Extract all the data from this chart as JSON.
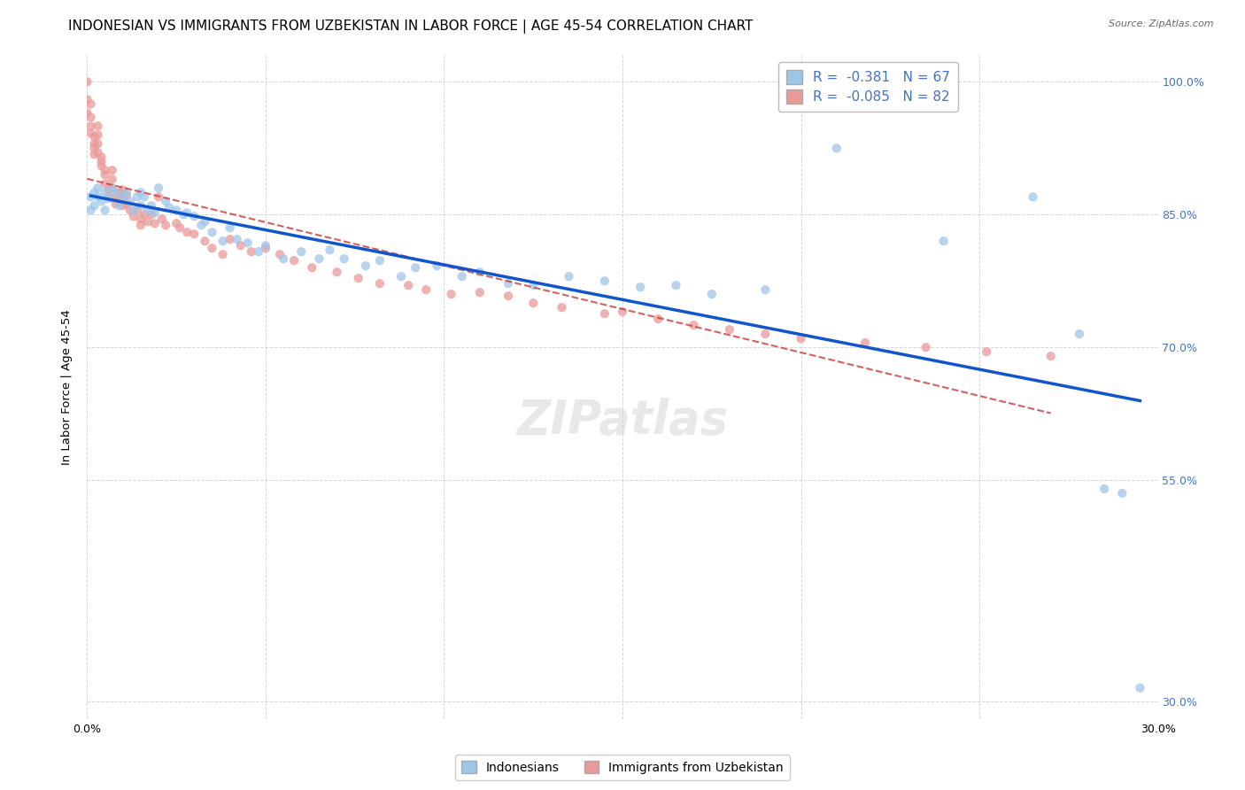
{
  "title": "INDONESIAN VS IMMIGRANTS FROM UZBEKISTAN IN LABOR FORCE | AGE 45-54 CORRELATION CHART",
  "source": "Source: ZipAtlas.com",
  "ylabel": "In Labor Force | Age 45-54",
  "xlim": [
    0.0,
    0.3
  ],
  "ylim": [
    0.28,
    1.03
  ],
  "xticks": [
    0.0,
    0.05,
    0.1,
    0.15,
    0.2,
    0.25,
    0.3
  ],
  "xticklabels": [
    "0.0%",
    "",
    "",
    "",
    "",
    "",
    "30.0%"
  ],
  "yticks": [
    0.3,
    0.55,
    0.7,
    0.85,
    1.0
  ],
  "yticklabels": [
    "30.0%",
    "55.0%",
    "70.0%",
    "85.0%",
    "100.0%"
  ],
  "blue_color": "#9fc5e8",
  "pink_color": "#ea9999",
  "blue_line_color": "#1155cc",
  "pink_line_color": "#cc4444",
  "R_blue": -0.381,
  "N_blue": 67,
  "R_pink": -0.085,
  "N_pink": 82,
  "legend_label_blue": "Indonesians",
  "legend_label_pink": "Immigrants from Uzbekistan",
  "blue_scatter_x": [
    0.001,
    0.001,
    0.002,
    0.002,
    0.003,
    0.003,
    0.004,
    0.005,
    0.005,
    0.006,
    0.007,
    0.008,
    0.009,
    0.01,
    0.011,
    0.012,
    0.013,
    0.014,
    0.015,
    0.015,
    0.016,
    0.017,
    0.018,
    0.019,
    0.02,
    0.022,
    0.023,
    0.025,
    0.027,
    0.028,
    0.03,
    0.032,
    0.033,
    0.035,
    0.038,
    0.04,
    0.042,
    0.045,
    0.048,
    0.05,
    0.055,
    0.06,
    0.065,
    0.068,
    0.072,
    0.078,
    0.082,
    0.088,
    0.092,
    0.098,
    0.105,
    0.11,
    0.118,
    0.125,
    0.135,
    0.145,
    0.155,
    0.165,
    0.175,
    0.19,
    0.21,
    0.24,
    0.265,
    0.278,
    0.285,
    0.29,
    0.295
  ],
  "blue_scatter_y": [
    0.87,
    0.855,
    0.875,
    0.86,
    0.88,
    0.87,
    0.865,
    0.855,
    0.875,
    0.868,
    0.88,
    0.875,
    0.86,
    0.87,
    0.875,
    0.865,
    0.855,
    0.87,
    0.86,
    0.875,
    0.87,
    0.855,
    0.86,
    0.852,
    0.88,
    0.865,
    0.858,
    0.855,
    0.85,
    0.852,
    0.848,
    0.838,
    0.842,
    0.83,
    0.82,
    0.835,
    0.822,
    0.818,
    0.808,
    0.815,
    0.8,
    0.808,
    0.8,
    0.81,
    0.8,
    0.792,
    0.798,
    0.78,
    0.79,
    0.792,
    0.78,
    0.785,
    0.772,
    0.77,
    0.78,
    0.775,
    0.768,
    0.77,
    0.76,
    0.765,
    0.925,
    0.82,
    0.87,
    0.715,
    0.54,
    0.535,
    0.315
  ],
  "pink_scatter_x": [
    0.0,
    0.0,
    0.0,
    0.001,
    0.001,
    0.001,
    0.001,
    0.002,
    0.002,
    0.002,
    0.002,
    0.003,
    0.003,
    0.003,
    0.003,
    0.004,
    0.004,
    0.004,
    0.005,
    0.005,
    0.005,
    0.006,
    0.006,
    0.007,
    0.007,
    0.007,
    0.008,
    0.008,
    0.009,
    0.009,
    0.01,
    0.01,
    0.01,
    0.011,
    0.011,
    0.012,
    0.013,
    0.014,
    0.015,
    0.015,
    0.016,
    0.017,
    0.018,
    0.019,
    0.02,
    0.021,
    0.022,
    0.025,
    0.026,
    0.028,
    0.03,
    0.033,
    0.035,
    0.038,
    0.04,
    0.043,
    0.046,
    0.05,
    0.054,
    0.058,
    0.063,
    0.07,
    0.076,
    0.082,
    0.09,
    0.095,
    0.102,
    0.11,
    0.118,
    0.125,
    0.133,
    0.145,
    0.15,
    0.16,
    0.17,
    0.18,
    0.19,
    0.2,
    0.218,
    0.235,
    0.252,
    0.27
  ],
  "pink_scatter_y": [
    1.0,
    0.98,
    0.965,
    0.975,
    0.96,
    0.95,
    0.942,
    0.938,
    0.93,
    0.925,
    0.918,
    0.95,
    0.94,
    0.93,
    0.92,
    0.915,
    0.91,
    0.905,
    0.9,
    0.895,
    0.885,
    0.878,
    0.87,
    0.9,
    0.89,
    0.88,
    0.87,
    0.862,
    0.875,
    0.865,
    0.878,
    0.87,
    0.86,
    0.872,
    0.862,
    0.855,
    0.848,
    0.855,
    0.845,
    0.838,
    0.85,
    0.842,
    0.85,
    0.84,
    0.87,
    0.845,
    0.838,
    0.84,
    0.835,
    0.83,
    0.828,
    0.82,
    0.812,
    0.805,
    0.822,
    0.815,
    0.808,
    0.812,
    0.805,
    0.798,
    0.79,
    0.785,
    0.778,
    0.772,
    0.77,
    0.765,
    0.76,
    0.762,
    0.758,
    0.75,
    0.745,
    0.738,
    0.74,
    0.732,
    0.725,
    0.72,
    0.715,
    0.71,
    0.705,
    0.7,
    0.695,
    0.69
  ],
  "background_color": "#ffffff",
  "grid_color": "#cccccc",
  "title_fontsize": 11,
  "axis_label_fontsize": 9.5,
  "tick_color": "#4472c4",
  "scatter_size": 55
}
